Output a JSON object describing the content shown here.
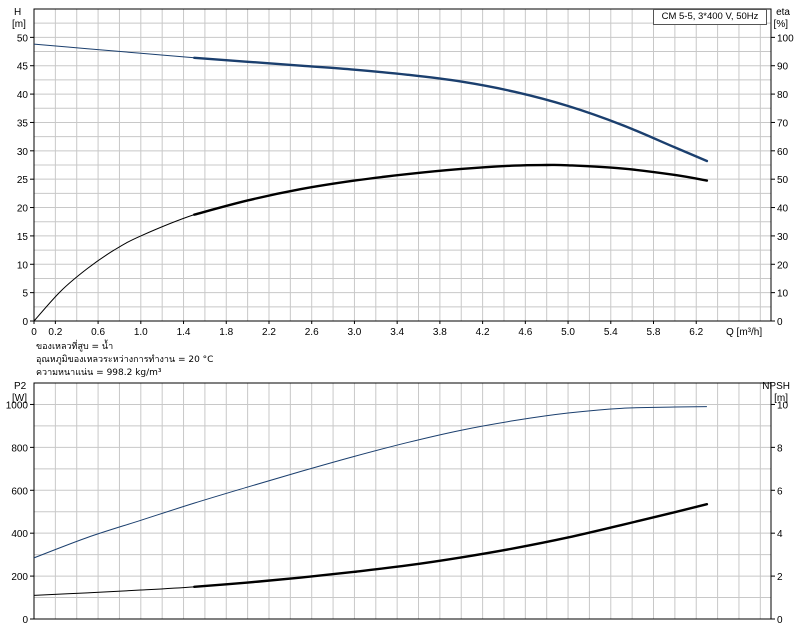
{
  "pump_label": "CM 5-5, 3*400 V, 50Hz",
  "fluid_notes": [
    "ของเหลวที่สูบ = น้ำ",
    "อุณหภูมิของเหลวระหว่างการทำงาน = 20 °C",
    "ความหนาแน่น = 998.2 kg/m³"
  ],
  "colors": {
    "blue_curve": "#1b3f6e",
    "black_curve": "#000000",
    "grid": "#c8c8c8",
    "frame": "#000000"
  },
  "chart_data": [
    {
      "type": "line",
      "x_unit_label": "Q [m³/h]",
      "x_ticks": [
        "0",
        "0.2",
        "0.6",
        "1.0",
        "1.4",
        "1.8",
        "2.2",
        "2.6",
        "3.0",
        "3.4",
        "3.8",
        "4.2",
        "4.6",
        "5.0",
        "5.4",
        "5.8",
        "6.2"
      ],
      "xlim": [
        0,
        6.9
      ],
      "y_left": {
        "label_top": "H",
        "label_unit": "[m]",
        "ticks": [
          "0",
          "5",
          "10",
          "15",
          "20",
          "25",
          "30",
          "35",
          "40",
          "45",
          "50"
        ],
        "lim": [
          0,
          55
        ]
      },
      "y_right": {
        "label_top": "eta",
        "label_unit": "[%]",
        "ticks": [
          "0",
          "10",
          "20",
          "30",
          "40",
          "50",
          "60",
          "70",
          "80",
          "90",
          "100"
        ],
        "lim": [
          0,
          110
        ]
      },
      "grid": true,
      "series": [
        {
          "axis": "left",
          "color": "blue",
          "thick_from": 1.25,
          "x": [
            0,
            0.5,
            1.0,
            1.5,
            2.0,
            2.5,
            3.0,
            3.5,
            4.0,
            4.5,
            5.0,
            5.5,
            6.0,
            6.3
          ],
          "y": [
            48.8,
            48.0,
            47.2,
            46.4,
            45.7,
            45.0,
            44.3,
            43.4,
            42.2,
            40.4,
            37.9,
            34.6,
            30.6,
            28.2
          ]
        },
        {
          "axis": "right",
          "color": "black",
          "thick_from": 1.25,
          "x": [
            0,
            0.25,
            0.5,
            0.75,
            1.0,
            1.5,
            2.0,
            2.5,
            3.0,
            3.5,
            4.0,
            4.5,
            4.8,
            5.0,
            5.5,
            6.0,
            6.3
          ],
          "y": [
            0,
            10.5,
            18.5,
            25,
            30,
            37.5,
            42.5,
            46.5,
            49.5,
            51.8,
            53.6,
            54.8,
            55,
            54.9,
            53.8,
            51.5,
            49.5
          ]
        }
      ]
    },
    {
      "type": "line",
      "xlim": [
        0,
        6.9
      ],
      "y_left": {
        "label_top": "P2",
        "label_unit": "[W]",
        "ticks": [
          "0",
          "200",
          "400",
          "600",
          "800",
          "1000"
        ],
        "lim": [
          0,
          1100
        ]
      },
      "y_right": {
        "label_top": "NPSH",
        "label_unit": "[m]",
        "ticks": [
          "0",
          "2",
          "4",
          "6",
          "8",
          "10"
        ],
        "lim": [
          0,
          11
        ]
      },
      "grid": true,
      "series": [
        {
          "axis": "left",
          "color": "blue",
          "thick_from": 99,
          "x": [
            0,
            0.5,
            1.0,
            1.5,
            2.0,
            2.5,
            3.0,
            3.5,
            4.0,
            4.5,
            5.0,
            5.5,
            6.0,
            6.3
          ],
          "y": [
            285,
            380,
            460,
            540,
            615,
            688,
            758,
            823,
            880,
            925,
            960,
            982,
            988,
            990
          ]
        },
        {
          "axis": "right",
          "color": "black",
          "thick_from": 1.25,
          "x": [
            0,
            0.5,
            1.0,
            1.5,
            2.0,
            2.5,
            3.0,
            3.5,
            4.0,
            4.5,
            5.0,
            5.5,
            6.0,
            6.3
          ],
          "y": [
            1.1,
            1.22,
            1.35,
            1.5,
            1.7,
            1.93,
            2.2,
            2.5,
            2.87,
            3.3,
            3.8,
            4.38,
            4.98,
            5.35
          ]
        }
      ]
    }
  ]
}
